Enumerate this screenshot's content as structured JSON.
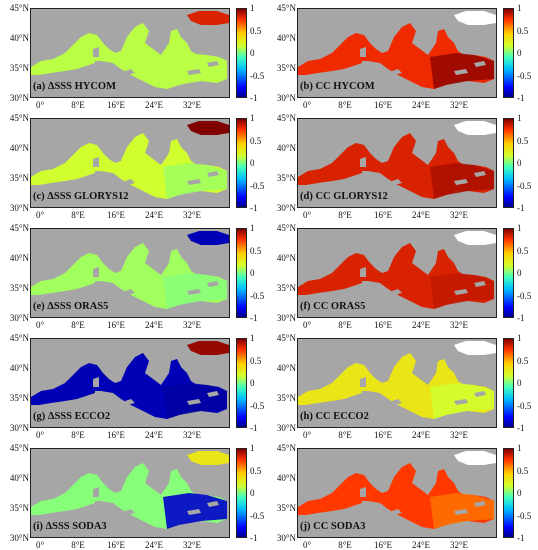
{
  "figure": {
    "y_ticks": [
      "45°N",
      "40°N",
      "35°N",
      "30°N"
    ],
    "x_ticks": [
      "0°",
      "8°E",
      "16°E",
      "24°E",
      "32°E"
    ],
    "colorbar_ticks": [
      "1",
      "0.5",
      "0",
      "-0.5",
      "-1"
    ],
    "colors": {
      "land": "#a6a6a6",
      "no_data": "#ffffff",
      "colormap": [
        "#00008f",
        "#0000ff",
        "#00c0ff",
        "#40ffbf",
        "#d0ff30",
        "#ffd000",
        "#ff3000",
        "#800000"
      ]
    },
    "panels": [
      {
        "id": "a",
        "label": "(a) ΔSSS HYCOM",
        "variable": "ΔSSS",
        "product": "HYCOM",
        "dominant_value": 0.1,
        "east_value": 0.1,
        "ne_corner_value": 0.8
      },
      {
        "id": "b",
        "label": "(b) CC HYCOM",
        "variable": "CC",
        "product": "HYCOM",
        "dominant_value": 0.75,
        "east_value": 0.95,
        "ne_corner_value": null
      },
      {
        "id": "c",
        "label": "(c) ΔSSS GLORYS12",
        "variable": "ΔSSS",
        "product": "GLORYS12",
        "dominant_value": 0.15,
        "east_value": 0.05,
        "ne_corner_value": 1.0
      },
      {
        "id": "d",
        "label": "(d) CC GLORYS12",
        "variable": "CC",
        "product": "GLORYS12",
        "dominant_value": 0.8,
        "east_value": 0.9,
        "ne_corner_value": null
      },
      {
        "id": "e",
        "label": "(e) ΔSSS ORAS5",
        "variable": "ΔSSS",
        "product": "ORAS5",
        "dominant_value": 0.05,
        "east_value": 0.0,
        "ne_corner_value": -0.9
      },
      {
        "id": "f",
        "label": "(f) CC ORAS5",
        "variable": "CC",
        "product": "ORAS5",
        "dominant_value": 0.8,
        "east_value": 0.85,
        "ne_corner_value": null
      },
      {
        "id": "g",
        "label": "(g) ΔSSS ECCO2",
        "variable": "ΔSSS",
        "product": "ECCO2",
        "dominant_value": -0.9,
        "east_value": -0.95,
        "ne_corner_value": 0.95
      },
      {
        "id": "h",
        "label": "(h) CC ECCO2",
        "variable": "CC",
        "product": "ECCO2",
        "dominant_value": 0.3,
        "east_value": 0.15,
        "ne_corner_value": null
      },
      {
        "id": "i",
        "label": "(i) ΔSSS SODA3",
        "variable": "ΔSSS",
        "product": "SODA3",
        "dominant_value": 0.0,
        "east_value": -0.85,
        "ne_corner_value": 0.3
      },
      {
        "id": "j",
        "label": "(j) CC SODA3",
        "variable": "CC",
        "product": "SODA3",
        "dominant_value": 0.7,
        "east_value": 0.6,
        "ne_corner_value": null
      }
    ]
  }
}
